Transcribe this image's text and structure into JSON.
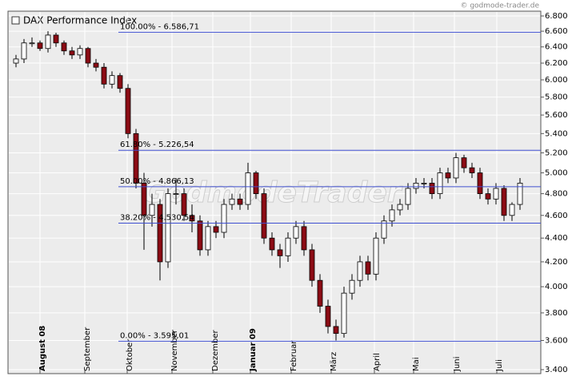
{
  "chart_data": {
    "type": "candlestick",
    "title": "DAX Performance Index",
    "source": "© godmode-trader.de",
    "watermark": "GodmodeTrader",
    "log_scale": true,
    "grid": true,
    "up_color": "#ffffff",
    "down_color": "#8b0a14",
    "line_color": "#3f4fd0",
    "ylim": [
      3400,
      6800
    ],
    "yticks": [
      {
        "value": 3400,
        "label": "3.400"
      },
      {
        "value": 3600,
        "label": "3.600"
      },
      {
        "value": 3800,
        "label": "3.800"
      },
      {
        "value": 4000,
        "label": "4.000"
      },
      {
        "value": 4200,
        "label": "4.200"
      },
      {
        "value": 4400,
        "label": "4.400"
      },
      {
        "value": 4600,
        "label": "4.600"
      },
      {
        "value": 4800,
        "label": "4.800"
      },
      {
        "value": 5000,
        "label": "5.000"
      },
      {
        "value": 5200,
        "label": "5.200"
      },
      {
        "value": 5400,
        "label": "5.400"
      },
      {
        "value": 5600,
        "label": "5.600"
      },
      {
        "value": 5800,
        "label": "5.800"
      },
      {
        "value": 6000,
        "label": "6.000"
      },
      {
        "value": 6200,
        "label": "6.200"
      },
      {
        "value": 6400,
        "label": "6.400"
      },
      {
        "value": 6600,
        "label": "6.600"
      },
      {
        "value": 6800,
        "label": "6.800"
      }
    ],
    "xlim": [
      -1,
      65.6
    ],
    "xticks": [
      {
        "value": 3,
        "label": "August 08"
      },
      {
        "value": 8.6,
        "label": "September"
      },
      {
        "value": 13.9,
        "label": "Oktober"
      },
      {
        "value": 19.5,
        "label": "November"
      },
      {
        "value": 24.6,
        "label": "Dezember"
      },
      {
        "value": 29.3,
        "label": "Januar 09"
      },
      {
        "value": 34.4,
        "label": "Februar"
      },
      {
        "value": 39.4,
        "label": "März"
      },
      {
        "value": 44.8,
        "label": "April"
      },
      {
        "value": 49.7,
        "label": "Mai"
      },
      {
        "value": 54.8,
        "label": "Juni"
      },
      {
        "value": 60.1,
        "label": "Juli"
      }
    ],
    "x": [
      0,
      1,
      2,
      3,
      4,
      5,
      6,
      7,
      8,
      9,
      10,
      11,
      12,
      13,
      14,
      15,
      16,
      17,
      18,
      19,
      20,
      21,
      22,
      23,
      24,
      25,
      26,
      27,
      28,
      29,
      30,
      31,
      32,
      33,
      34,
      35,
      36,
      37,
      38,
      39,
      40,
      41,
      42,
      43,
      44,
      45,
      46,
      47,
      48,
      49,
      50,
      51,
      52,
      53,
      54,
      55,
      56,
      57,
      58,
      59,
      60,
      61,
      62,
      63
    ],
    "open": [
      6200,
      6250,
      6450,
      6450,
      6380,
      6550,
      6450,
      6350,
      6300,
      6380,
      6200,
      6150,
      5950,
      6050,
      5900,
      5400,
      4900,
      4600,
      4700,
      4200,
      4800,
      4800,
      4600,
      4550,
      4300,
      4500,
      4450,
      4700,
      4750,
      4700,
      5000,
      4800,
      4400,
      4300,
      4250,
      4400,
      4500,
      4300,
      4050,
      3850,
      3700,
      3650,
      3950,
      4050,
      4200,
      4100,
      4400,
      4550,
      4650,
      4700,
      4850,
      4900,
      4900,
      4800,
      5000,
      4950,
      5150,
      5050,
      5000,
      4800,
      4750,
      4850,
      4600,
      4700
    ],
    "high": [
      6300,
      6500,
      6520,
      6480,
      6600,
      6580,
      6480,
      6400,
      6420,
      6400,
      6250,
      6200,
      6100,
      6080,
      5950,
      5450,
      5000,
      4800,
      4750,
      4850,
      4950,
      4850,
      4700,
      4600,
      4550,
      4550,
      4750,
      4800,
      4800,
      5100,
      5020,
      4850,
      4450,
      4350,
      4450,
      4550,
      4550,
      4350,
      4100,
      3900,
      3750,
      4000,
      4100,
      4250,
      4250,
      4450,
      4600,
      4700,
      4750,
      4900,
      4950,
      4950,
      4950,
      5050,
      5050,
      5200,
      5180,
      5100,
      5050,
      4850,
      4900,
      4880,
      4720,
      4950
    ],
    "low": [
      6150,
      6200,
      6400,
      6350,
      6330,
      6400,
      6300,
      6250,
      6250,
      6150,
      6100,
      5900,
      5900,
      5850,
      5350,
      4850,
      4300,
      4500,
      4050,
      4150,
      4700,
      4550,
      4450,
      4250,
      4250,
      4400,
      4400,
      4650,
      4650,
      4650,
      4750,
      4350,
      4250,
      4150,
      4200,
      4350,
      4250,
      4000,
      3800,
      3650,
      3600,
      3620,
      3900,
      4000,
      4050,
      4050,
      4350,
      4500,
      4600,
      4650,
      4800,
      4850,
      4750,
      4750,
      4900,
      4900,
      5000,
      4950,
      4750,
      4700,
      4700,
      4550,
      4550,
      4650
    ],
    "close": [
      6250,
      6450,
      6450,
      6380,
      6550,
      6450,
      6350,
      6300,
      6380,
      6200,
      6150,
      5950,
      6050,
      5900,
      5400,
      4900,
      4600,
      4700,
      4200,
      4800,
      4800,
      4600,
      4550,
      4300,
      4500,
      4450,
      4700,
      4750,
      4700,
      5000,
      4800,
      4400,
      4300,
      4250,
      4400,
      4500,
      4300,
      4050,
      3850,
      3700,
      3650,
      3950,
      4050,
      4200,
      4100,
      4400,
      4550,
      4650,
      4700,
      4850,
      4900,
      4900,
      4800,
      5000,
      4950,
      5150,
      5050,
      5000,
      4800,
      4750,
      4850,
      4600,
      4700,
      4900
    ],
    "levels": [
      {
        "value": 6586.71,
        "label": "100.00% - 6.586,71"
      },
      {
        "value": 5226.54,
        "label": "61.80% - 5.226,54"
      },
      {
        "value": 4866.13,
        "label": "50.00% - 4.866,13"
      },
      {
        "value": 4530.54,
        "label": "38.20% - 4.530,54"
      },
      {
        "value": 3595.01,
        "label": "0.00% - 3.595,01"
      }
    ]
  }
}
